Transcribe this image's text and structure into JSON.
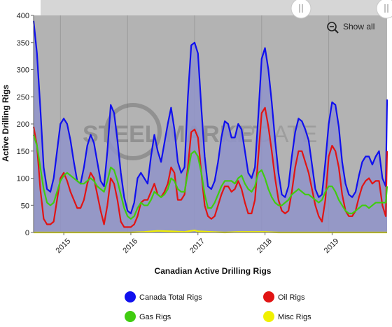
{
  "controls": {
    "show_all_label": "Show all",
    "show_all_icon": "zoom-out-icon",
    "scroll_handle_icon": "scrollbar-grip-icon"
  },
  "colors": {
    "plot_bg": "#b3b3b3",
    "canada_total": "#1010ee",
    "oil": "#e11414",
    "gas": "#40cc10",
    "misc": "#f0f000",
    "area_fill": "#8f93c9"
  },
  "watermark": {
    "text_left": "STEEL MARKET",
    "text_right": "UPDATE"
  },
  "chart_data": {
    "type": "line",
    "title": "",
    "xlabel": "Canadian Active Drilling Rigs",
    "ylabel": "Active Drilling Rigs",
    "ylim": [
      0,
      400
    ],
    "xlim": [
      2014.55,
      2019.82
    ],
    "yticks": [
      0,
      50,
      100,
      150,
      200,
      250,
      300,
      350,
      400
    ],
    "xticks": [
      {
        "value": 2015,
        "label": "2015"
      },
      {
        "value": 2016,
        "label": "2016"
      },
      {
        "value": 2017,
        "label": "2017"
      },
      {
        "value": 2018,
        "label": "2018"
      },
      {
        "value": 2019,
        "label": "2019"
      }
    ],
    "grid": "vertical",
    "legend_position": "bottom",
    "series": [
      {
        "name": "Canada Total Rigs",
        "color": "#1010ee",
        "fill": true,
        "x": [
          2014.55,
          2014.6,
          2014.65,
          2014.7,
          2014.75,
          2014.8,
          2014.85,
          2014.9,
          2014.95,
          2015.0,
          2015.05,
          2015.1,
          2015.15,
          2015.2,
          2015.25,
          2015.3,
          2015.35,
          2015.4,
          2015.45,
          2015.5,
          2015.55,
          2015.6,
          2015.65,
          2015.7,
          2015.75,
          2015.8,
          2015.85,
          2015.9,
          2015.95,
          2016.0,
          2016.05,
          2016.1,
          2016.15,
          2016.2,
          2016.25,
          2016.3,
          2016.35,
          2016.4,
          2016.45,
          2016.5,
          2016.55,
          2016.6,
          2016.65,
          2016.7,
          2016.75,
          2016.8,
          2016.85,
          2016.9,
          2016.95,
          2017.0,
          2017.05,
          2017.1,
          2017.15,
          2017.2,
          2017.25,
          2017.3,
          2017.35,
          2017.4,
          2017.45,
          2017.5,
          2017.55,
          2017.6,
          2017.65,
          2017.7,
          2017.75,
          2017.8,
          2017.85,
          2017.9,
          2017.95,
          2018.0,
          2018.05,
          2018.1,
          2018.15,
          2018.2,
          2018.25,
          2018.3,
          2018.35,
          2018.4,
          2018.45,
          2018.5,
          2018.55,
          2018.6,
          2018.65,
          2018.7,
          2018.75,
          2018.8,
          2018.85,
          2018.9,
          2018.95,
          2019.0,
          2019.05,
          2019.1,
          2019.15,
          2019.2,
          2019.25,
          2019.3,
          2019.35,
          2019.4,
          2019.45,
          2019.5,
          2019.55,
          2019.6,
          2019.65,
          2019.7,
          2019.75,
          2019.8,
          2019.82
        ],
        "y": [
          390,
          330,
          230,
          120,
          80,
          75,
          100,
          150,
          200,
          210,
          200,
          170,
          130,
          95,
          90,
          120,
          160,
          180,
          165,
          130,
          95,
          85,
          150,
          235,
          220,
          170,
          110,
          65,
          40,
          35,
          55,
          100,
          110,
          100,
          90,
          140,
          180,
          150,
          130,
          165,
          200,
          230,
          190,
          130,
          110,
          120,
          250,
          345,
          350,
          330,
          230,
          140,
          85,
          80,
          95,
          130,
          175,
          205,
          200,
          175,
          175,
          200,
          190,
          150,
          110,
          100,
          120,
          215,
          320,
          340,
          300,
          240,
          170,
          110,
          70,
          65,
          85,
          140,
          185,
          210,
          205,
          190,
          170,
          125,
          80,
          65,
          70,
          130,
          200,
          240,
          235,
          195,
          130,
          90,
          70,
          65,
          75,
          105,
          130,
          140,
          140,
          125,
          140,
          150,
          100,
          85,
          245
        ]
      },
      {
        "name": "Oil Rigs",
        "color": "#e11414",
        "fill": false,
        "x": [
          2014.55,
          2014.6,
          2014.65,
          2014.7,
          2014.75,
          2014.8,
          2014.85,
          2014.9,
          2014.95,
          2015.0,
          2015.05,
          2015.1,
          2015.15,
          2015.2,
          2015.25,
          2015.3,
          2015.35,
          2015.4,
          2015.45,
          2015.5,
          2015.55,
          2015.6,
          2015.65,
          2015.7,
          2015.75,
          2015.8,
          2015.85,
          2015.9,
          2015.95,
          2016.0,
          2016.05,
          2016.1,
          2016.15,
          2016.2,
          2016.25,
          2016.3,
          2016.35,
          2016.4,
          2016.45,
          2016.5,
          2016.55,
          2016.6,
          2016.65,
          2016.7,
          2016.75,
          2016.8,
          2016.85,
          2016.9,
          2016.95,
          2017.0,
          2017.05,
          2017.1,
          2017.15,
          2017.2,
          2017.25,
          2017.3,
          2017.35,
          2017.4,
          2017.45,
          2017.5,
          2017.55,
          2017.6,
          2017.65,
          2017.7,
          2017.75,
          2017.8,
          2017.85,
          2017.9,
          2017.95,
          2018.0,
          2018.05,
          2018.1,
          2018.15,
          2018.2,
          2018.25,
          2018.3,
          2018.35,
          2018.4,
          2018.45,
          2018.5,
          2018.55,
          2018.6,
          2018.65,
          2018.7,
          2018.75,
          2018.8,
          2018.85,
          2018.9,
          2018.95,
          2019.0,
          2019.05,
          2019.1,
          2019.15,
          2019.2,
          2019.25,
          2019.3,
          2019.35,
          2019.4,
          2019.45,
          2019.5,
          2019.55,
          2019.6,
          2019.65,
          2019.7,
          2019.75,
          2019.8,
          2019.82
        ],
        "y": [
          195,
          160,
          80,
          25,
          15,
          15,
          20,
          60,
          100,
          110,
          95,
          75,
          60,
          45,
          45,
          60,
          90,
          110,
          100,
          70,
          40,
          15,
          50,
          100,
          90,
          60,
          20,
          10,
          10,
          10,
          15,
          30,
          55,
          60,
          60,
          75,
          90,
          70,
          65,
          75,
          90,
          120,
          110,
          60,
          60,
          70,
          120,
          185,
          190,
          175,
          110,
          50,
          30,
          25,
          30,
          50,
          70,
          85,
          85,
          75,
          80,
          95,
          80,
          55,
          35,
          35,
          60,
          140,
          220,
          230,
          195,
          150,
          100,
          60,
          40,
          35,
          40,
          75,
          120,
          150,
          150,
          130,
          110,
          80,
          50,
          30,
          20,
          60,
          140,
          160,
          150,
          120,
          70,
          40,
          30,
          30,
          40,
          65,
          85,
          95,
          100,
          90,
          95,
          95,
          50,
          30,
          150
        ]
      },
      {
        "name": "Gas Rigs",
        "color": "#40cc10",
        "fill": false,
        "x": [
          2014.55,
          2014.6,
          2014.65,
          2014.7,
          2014.75,
          2014.8,
          2014.85,
          2014.9,
          2014.95,
          2015.0,
          2015.05,
          2015.1,
          2015.15,
          2015.2,
          2015.25,
          2015.3,
          2015.35,
          2015.4,
          2015.45,
          2015.5,
          2015.55,
          2015.6,
          2015.65,
          2015.7,
          2015.75,
          2015.8,
          2015.85,
          2015.9,
          2015.95,
          2016.0,
          2016.05,
          2016.1,
          2016.15,
          2016.2,
          2016.25,
          2016.3,
          2016.35,
          2016.4,
          2016.45,
          2016.5,
          2016.55,
          2016.6,
          2016.65,
          2016.7,
          2016.75,
          2016.8,
          2016.85,
          2016.9,
          2016.95,
          2017.0,
          2017.05,
          2017.1,
          2017.15,
          2017.2,
          2017.25,
          2017.3,
          2017.35,
          2017.4,
          2017.45,
          2017.5,
          2017.55,
          2017.6,
          2017.65,
          2017.7,
          2017.75,
          2017.8,
          2017.85,
          2017.9,
          2017.95,
          2018.0,
          2018.05,
          2018.1,
          2018.15,
          2018.2,
          2018.25,
          2018.3,
          2018.35,
          2018.4,
          2018.45,
          2018.5,
          2018.55,
          2018.6,
          2018.65,
          2018.7,
          2018.75,
          2018.8,
          2018.85,
          2018.9,
          2018.95,
          2019.0,
          2019.05,
          2019.1,
          2019.15,
          2019.2,
          2019.25,
          2019.3,
          2019.35,
          2019.4,
          2019.45,
          2019.5,
          2019.55,
          2019.6,
          2019.65,
          2019.7,
          2019.75,
          2019.8,
          2019.82
        ],
        "y": [
          180,
          160,
          120,
          80,
          55,
          50,
          55,
          75,
          95,
          105,
          110,
          105,
          100,
          95,
          90,
          90,
          95,
          100,
          95,
          85,
          80,
          75,
          95,
          120,
          115,
          95,
          70,
          45,
          30,
          25,
          30,
          45,
          55,
          50,
          50,
          60,
          75,
          70,
          65,
          70,
          80,
          100,
          95,
          80,
          75,
          75,
          110,
          145,
          150,
          140,
          110,
          70,
          45,
          45,
          55,
          70,
          85,
          95,
          95,
          95,
          90,
          100,
          105,
          90,
          80,
          75,
          85,
          110,
          115,
          100,
          80,
          65,
          55,
          50,
          50,
          55,
          60,
          70,
          75,
          80,
          75,
          70,
          70,
          65,
          60,
          55,
          60,
          75,
          85,
          85,
          75,
          60,
          50,
          40,
          35,
          35,
          40,
          45,
          50,
          50,
          45,
          50,
          55,
          55,
          55,
          55,
          85
        ]
      },
      {
        "name": "Misc Rigs",
        "color": "#f0f000",
        "fill": false,
        "x": [
          2014.55,
          2014.8,
          2015.0,
          2015.3,
          2015.5,
          2015.7,
          2015.9,
          2016.0,
          2016.2,
          2016.4,
          2016.6,
          2016.8,
          2016.95,
          2017.0,
          2017.2,
          2017.4,
          2017.6,
          2017.8,
          2018.0,
          2018.2,
          2018.4,
          2018.6,
          2018.8,
          2019.0,
          2019.2,
          2019.4,
          2019.6,
          2019.82
        ],
        "y": [
          0,
          0,
          0,
          0,
          0,
          0,
          0,
          0,
          1,
          3,
          2,
          1,
          4,
          2,
          1,
          0,
          1,
          1,
          1,
          0,
          0,
          0,
          0,
          0,
          0,
          0,
          0,
          0
        ]
      }
    ]
  }
}
